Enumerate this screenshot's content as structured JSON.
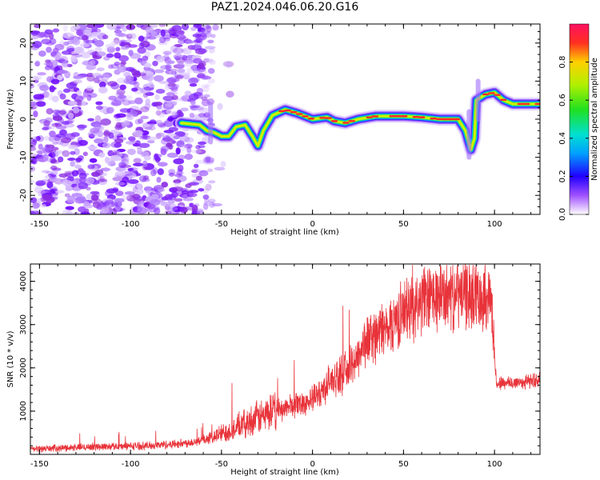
{
  "title": "PAZ1.2024.046.06.20.G16",
  "charts": [
    {
      "type": "heatmap",
      "xlabel": "Height of straight line (km)",
      "ylabel": "Frequency (Hz)",
      "xlim": [
        -155,
        125
      ],
      "ylim": [
        -25,
        25
      ],
      "xticks": [
        -150,
        -100,
        -50,
        0,
        50,
        100
      ],
      "yticks": [
        -20,
        -10,
        0,
        10,
        20
      ],
      "colorbar": {
        "label": "Normalized spectral amplitude",
        "ticks": [
          "0.0",
          "0.2",
          "0.4",
          "0.6",
          "0.8"
        ],
        "range": [
          0,
          1
        ]
      },
      "ridge": [
        {
          "x": -72,
          "f": -1.0
        },
        {
          "x": -62,
          "f": -1.5
        },
        {
          "x": -58,
          "f": -3.0
        },
        {
          "x": -54,
          "f": -3.5
        },
        {
          "x": -50,
          "f": -4.5
        },
        {
          "x": -46,
          "f": -4.5
        },
        {
          "x": -42,
          "f": -2.0
        },
        {
          "x": -37,
          "f": -1.5
        },
        {
          "x": -33,
          "f": -4.5
        },
        {
          "x": -30,
          "f": -7.0
        },
        {
          "x": -27,
          "f": -3.0
        },
        {
          "x": -22,
          "f": 1.0
        },
        {
          "x": -15,
          "f": 2.5
        },
        {
          "x": -8,
          "f": 1.5
        },
        {
          "x": 0,
          "f": 0.0
        },
        {
          "x": 8,
          "f": 0.5
        },
        {
          "x": 12,
          "f": -0.5
        },
        {
          "x": 18,
          "f": -1.0
        },
        {
          "x": 25,
          "f": 0.0
        },
        {
          "x": 35,
          "f": 0.8
        },
        {
          "x": 50,
          "f": 0.8
        },
        {
          "x": 60,
          "f": 0.5
        },
        {
          "x": 70,
          "f": 0.0
        },
        {
          "x": 80,
          "f": 0.0
        },
        {
          "x": 84,
          "f": -3.0
        },
        {
          "x": 87,
          "f": -8.0
        },
        {
          "x": 89,
          "f": -5.0
        },
        {
          "x": 90,
          "f": 5.0
        },
        {
          "x": 95,
          "f": 6.5
        },
        {
          "x": 100,
          "f": 7.0
        },
        {
          "x": 105,
          "f": 5.0
        },
        {
          "x": 110,
          "f": 4.0
        },
        {
          "x": 125,
          "f": 4.0
        }
      ]
    },
    {
      "type": "line",
      "xlabel": "Height of straight line (km)",
      "ylabel": "SNR (10 * v/v)",
      "xlim": [
        -155,
        125
      ],
      "ylim": [
        0,
        4400
      ],
      "xticks": [
        -150,
        -100,
        -50,
        0,
        50,
        100
      ],
      "yticks": [
        1000,
        2000,
        3000,
        4000
      ],
      "color": "#e8333a",
      "series": [
        {
          "x": [
            -155,
            -120,
            -90,
            -70,
            -60,
            -50,
            -40,
            -30,
            -20,
            -10,
            0,
            10,
            20,
            30,
            40,
            50,
            60,
            70,
            80,
            90,
            98,
            101,
            104,
            110,
            125
          ],
          "y": [
            120,
            180,
            200,
            260,
            330,
            480,
            650,
            850,
            1000,
            1150,
            1250,
            1700,
            1950,
            2650,
            2900,
            3300,
            3550,
            3650,
            3700,
            3700,
            3650,
            1650,
            1650,
            1650,
            1720
          ]
        }
      ]
    }
  ]
}
